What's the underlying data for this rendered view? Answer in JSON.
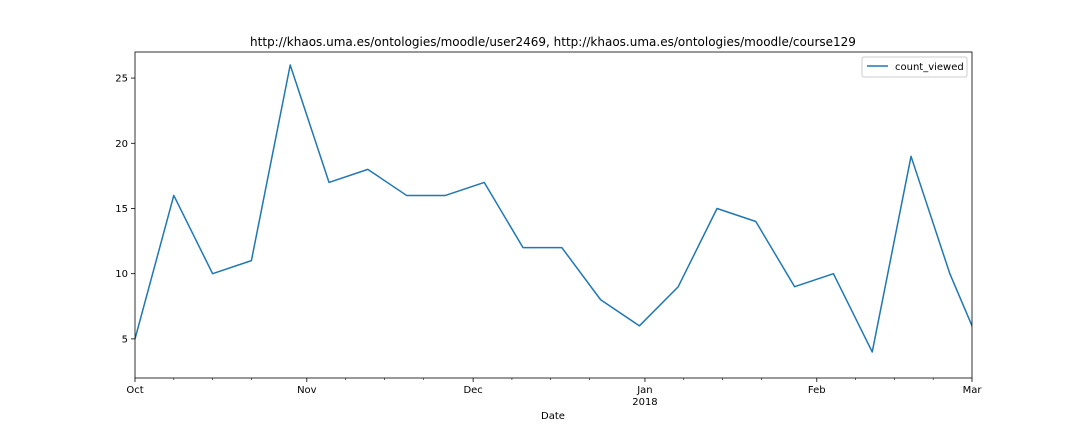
{
  "chart_data": {
    "type": "line",
    "title": "http://khaos.uma.es/ontologies/moodle/user2469, http://khaos.uma.es/ontologies/moodle/course129",
    "xlabel": "Date",
    "ylabel": "",
    "xlim": [
      "2017-10-01",
      "2018-03-01"
    ],
    "ylim": [
      2,
      27
    ],
    "yticks": [
      5,
      10,
      15,
      20,
      25
    ],
    "xticks_major": [
      {
        "date": "2017-10-01",
        "label": "Oct",
        "sublabel": ""
      },
      {
        "date": "2017-11-01",
        "label": "Nov",
        "sublabel": ""
      },
      {
        "date": "2017-12-01",
        "label": "Dec",
        "sublabel": ""
      },
      {
        "date": "2018-01-01",
        "label": "Jan",
        "sublabel": "2018"
      },
      {
        "date": "2018-02-01",
        "label": "Feb",
        "sublabel": ""
      },
      {
        "date": "2018-03-01",
        "label": "Mar",
        "sublabel": ""
      }
    ],
    "xticks_minor": [
      "2017-10-08",
      "2017-10-15",
      "2017-10-22",
      "2017-11-08",
      "2017-11-15",
      "2017-11-22",
      "2017-12-08",
      "2017-12-15",
      "2017-12-22",
      "2018-01-08",
      "2018-01-15",
      "2018-01-22",
      "2018-02-08",
      "2018-02-15",
      "2018-02-22"
    ],
    "legend": "top-right",
    "grid": false,
    "series": [
      {
        "name": "count_viewed",
        "color": "#1f77b4",
        "x": [
          "2017-10-01",
          "2017-10-08",
          "2017-10-15",
          "2017-10-22",
          "2017-10-29",
          "2017-11-05",
          "2017-11-12",
          "2017-11-19",
          "2017-11-26",
          "2017-12-03",
          "2017-12-10",
          "2017-12-17",
          "2017-12-24",
          "2017-12-31",
          "2018-01-07",
          "2018-01-14",
          "2018-01-21",
          "2018-01-28",
          "2018-02-04",
          "2018-02-11",
          "2018-02-18",
          "2018-02-25",
          "2018-03-04"
        ],
        "values": [
          5,
          16,
          10,
          11,
          26,
          17,
          18,
          16,
          16,
          17,
          12,
          12,
          8,
          6,
          9,
          15,
          14,
          9,
          10,
          4,
          19,
          10,
          3
        ]
      }
    ]
  }
}
